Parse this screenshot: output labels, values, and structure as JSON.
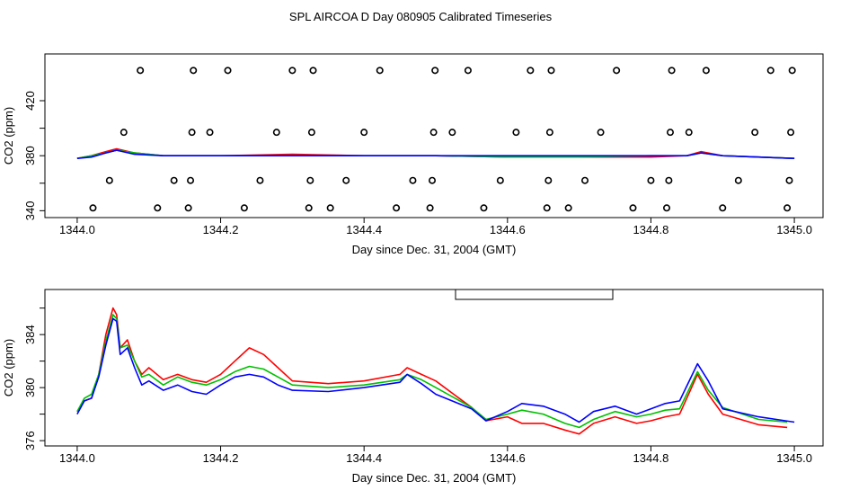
{
  "title": "SPL AIRCOA D  Day 080905  Calibrated Timeseries",
  "colors": {
    "red": "#ff0000",
    "green": "#00c000",
    "blue": "#0000ff",
    "axis": "#000000"
  },
  "chart_data": [
    {
      "type": "line",
      "panel": "top",
      "xlabel": "Day since Dec. 31, 2004 (GMT)",
      "ylabel": "CO2 (ppm)",
      "xlim": [
        1343.955,
        1345.04
      ],
      "ylim": [
        335,
        454
      ],
      "xticks": [
        1344.0,
        1344.2,
        1344.4,
        1344.6,
        1344.8,
        1345.0
      ],
      "xtick_labels": [
        "1344.0",
        "1344.2",
        "1344.4",
        "1344.6",
        "1344.8",
        "1345.0"
      ],
      "yticks": [
        340,
        360,
        380,
        400,
        420
      ],
      "ytick_labels": [
        "340",
        "",
        "380",
        "",
        "420"
      ],
      "series": [
        {
          "name": "red",
          "color": "#ff0000",
          "x": [
            1344.0,
            1344.02,
            1344.04,
            1344.055,
            1344.08,
            1344.12,
            1344.2,
            1344.3,
            1344.4,
            1344.5,
            1344.6,
            1344.7,
            1344.8,
            1344.85,
            1344.87,
            1344.9,
            1344.95,
            1345.0
          ],
          "values": [
            378,
            380,
            383,
            385,
            382,
            380,
            380,
            381,
            380,
            380,
            379,
            379,
            379,
            380,
            383,
            380,
            379,
            378
          ]
        },
        {
          "name": "green",
          "color": "#00c000",
          "x": [
            1344.0,
            1344.02,
            1344.04,
            1344.055,
            1344.08,
            1344.12,
            1344.2,
            1344.3,
            1344.4,
            1344.5,
            1344.6,
            1344.7,
            1344.8,
            1344.85,
            1344.87,
            1344.9,
            1344.95,
            1345.0
          ],
          "values": [
            378,
            380,
            382,
            384,
            382,
            380,
            380,
            380,
            380,
            380,
            379,
            379,
            380,
            380,
            382,
            380,
            379,
            378
          ]
        },
        {
          "name": "blue",
          "color": "#0000ff",
          "x": [
            1344.0,
            1344.02,
            1344.04,
            1344.055,
            1344.08,
            1344.12,
            1344.2,
            1344.3,
            1344.4,
            1344.5,
            1344.6,
            1344.7,
            1344.8,
            1344.85,
            1344.87,
            1344.9,
            1344.95,
            1345.0
          ],
          "values": [
            378,
            379,
            382,
            384,
            381,
            380,
            380,
            380,
            380,
            380,
            380,
            380,
            380,
            380,
            382,
            380,
            379,
            378
          ]
        }
      ],
      "points": {
        "name": "open-circles",
        "x": [
          1344.022,
          1344.045,
          1344.065,
          1344.088,
          1344.112,
          1344.135,
          1344.155,
          1344.158,
          1344.16,
          1344.162,
          1344.185,
          1344.21,
          1344.233,
          1344.255,
          1344.278,
          1344.3,
          1344.323,
          1344.325,
          1344.327,
          1344.329,
          1344.353,
          1344.375,
          1344.4,
          1344.422,
          1344.445,
          1344.468,
          1344.492,
          1344.495,
          1344.497,
          1344.499,
          1344.523,
          1344.545,
          1344.567,
          1344.59,
          1344.612,
          1344.632,
          1344.655,
          1344.657,
          1344.659,
          1344.661,
          1344.685,
          1344.708,
          1344.73,
          1344.752,
          1344.775,
          1344.8,
          1344.822,
          1344.825,
          1344.827,
          1344.829,
          1344.853,
          1344.877,
          1344.9,
          1344.922,
          1344.945,
          1344.967,
          1344.99,
          1344.993,
          1344.995,
          1344.997
        ],
        "values": [
          342,
          362,
          397,
          442,
          342,
          362,
          342,
          362,
          397,
          442,
          397,
          442,
          342,
          362,
          397,
          442,
          342,
          362,
          397,
          442,
          342,
          362,
          397,
          442,
          342,
          362,
          342,
          362,
          397,
          442,
          397,
          442,
          342,
          362,
          397,
          442,
          342,
          362,
          397,
          442,
          342,
          362,
          397,
          442,
          342,
          362,
          342,
          362,
          397,
          442,
          397,
          442,
          342,
          362,
          397,
          442,
          342,
          362,
          397,
          442
        ]
      }
    },
    {
      "type": "line",
      "panel": "bottom",
      "xlabel": "Day since Dec. 31, 2004 (GMT)",
      "ylabel": "CO2 (ppm)",
      "xlim": [
        1343.955,
        1345.04
      ],
      "ylim": [
        375.6,
        387.4
      ],
      "xticks": [
        1344.0,
        1344.2,
        1344.4,
        1344.6,
        1344.8,
        1345.0
      ],
      "xtick_labels": [
        "1344.0",
        "1344.2",
        "1344.4",
        "1344.6",
        "1344.8",
        "1345.0"
      ],
      "yticks": [
        376,
        378,
        380,
        382,
        384,
        386
      ],
      "ytick_labels": [
        "376",
        "",
        "380",
        "",
        "384",
        ""
      ],
      "annotation": "empty legend box at top, centered",
      "series": [
        {
          "name": "red",
          "color": "#ff0000",
          "x": [
            1344.0,
            1344.01,
            1344.02,
            1344.03,
            1344.04,
            1344.05,
            1344.055,
            1344.06,
            1344.07,
            1344.08,
            1344.09,
            1344.1,
            1344.12,
            1344.14,
            1344.16,
            1344.18,
            1344.2,
            1344.22,
            1344.24,
            1344.26,
            1344.28,
            1344.3,
            1344.35,
            1344.4,
            1344.45,
            1344.46,
            1344.48,
            1344.5,
            1344.55,
            1344.57,
            1344.6,
            1344.62,
            1344.65,
            1344.68,
            1344.7,
            1344.72,
            1344.75,
            1344.78,
            1344.8,
            1344.82,
            1344.84,
            1344.865,
            1344.88,
            1344.9,
            1344.95,
            1344.99
          ],
          "values": [
            378.2,
            379.0,
            379.2,
            381.0,
            384.0,
            386.0,
            385.5,
            383.0,
            383.6,
            382.0,
            381.0,
            381.5,
            380.6,
            381.0,
            380.6,
            380.4,
            381.0,
            382.0,
            383.0,
            382.5,
            381.5,
            380.5,
            380.3,
            380.5,
            381.0,
            381.5,
            381.0,
            380.5,
            378.5,
            377.5,
            377.8,
            377.3,
            377.3,
            376.8,
            376.5,
            377.3,
            377.8,
            377.3,
            377.5,
            377.8,
            378.0,
            381.0,
            379.5,
            378.0,
            377.2,
            377.0
          ]
        },
        {
          "name": "green",
          "color": "#00c000",
          "x": [
            1344.0,
            1344.01,
            1344.02,
            1344.03,
            1344.04,
            1344.05,
            1344.055,
            1344.06,
            1344.07,
            1344.08,
            1344.09,
            1344.1,
            1344.12,
            1344.14,
            1344.16,
            1344.18,
            1344.2,
            1344.22,
            1344.24,
            1344.26,
            1344.28,
            1344.3,
            1344.35,
            1344.4,
            1344.45,
            1344.46,
            1344.48,
            1344.5,
            1344.55,
            1344.57,
            1344.6,
            1344.62,
            1344.65,
            1344.68,
            1344.7,
            1344.72,
            1344.75,
            1344.78,
            1344.8,
            1344.82,
            1344.84,
            1344.865,
            1344.88,
            1344.9,
            1344.95,
            1344.99
          ],
          "values": [
            378.2,
            379.2,
            379.5,
            381.0,
            383.5,
            385.5,
            385.2,
            383.0,
            383.2,
            382.0,
            380.8,
            381.0,
            380.2,
            380.8,
            380.4,
            380.2,
            380.6,
            381.2,
            381.6,
            381.4,
            380.8,
            380.2,
            380.0,
            380.2,
            380.6,
            381.0,
            380.6,
            380.0,
            378.5,
            377.6,
            378.0,
            378.3,
            378.0,
            377.3,
            377.0,
            377.6,
            378.2,
            377.8,
            378.0,
            378.3,
            378.4,
            381.2,
            379.8,
            378.5,
            377.6,
            377.4
          ]
        },
        {
          "name": "blue",
          "color": "#0000ff",
          "x": [
            1344.0,
            1344.01,
            1344.02,
            1344.03,
            1344.04,
            1344.05,
            1344.055,
            1344.06,
            1344.07,
            1344.08,
            1344.09,
            1344.1,
            1344.12,
            1344.14,
            1344.16,
            1344.18,
            1344.2,
            1344.22,
            1344.24,
            1344.26,
            1344.28,
            1344.3,
            1344.35,
            1344.4,
            1344.45,
            1344.46,
            1344.48,
            1344.5,
            1344.55,
            1344.57,
            1344.6,
            1344.62,
            1344.65,
            1344.68,
            1344.7,
            1344.72,
            1344.75,
            1344.78,
            1344.8,
            1344.82,
            1344.84,
            1344.865,
            1344.88,
            1344.9,
            1344.95,
            1345.0
          ],
          "values": [
            378.0,
            379.0,
            379.2,
            380.8,
            383.2,
            385.2,
            385.0,
            382.5,
            383.0,
            381.5,
            380.2,
            380.5,
            379.8,
            380.2,
            379.7,
            379.5,
            380.2,
            380.8,
            381.0,
            380.8,
            380.2,
            379.8,
            379.7,
            380.0,
            380.4,
            381.0,
            380.3,
            379.5,
            378.4,
            377.5,
            378.2,
            378.8,
            378.6,
            378.0,
            377.4,
            378.2,
            378.6,
            378.0,
            378.4,
            378.8,
            379.0,
            381.8,
            380.5,
            378.4,
            377.8,
            377.4
          ]
        }
      ]
    }
  ]
}
